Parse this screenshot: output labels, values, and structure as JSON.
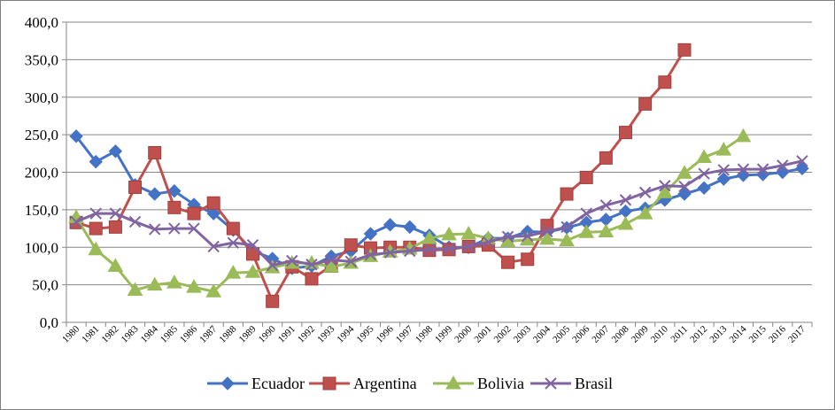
{
  "chart_data": {
    "type": "line",
    "title": "",
    "xlabel": "",
    "ylabel": "",
    "ylim": [
      0,
      400
    ],
    "yticks": [
      "0,0",
      "50,0",
      "100,0",
      "150,0",
      "200,0",
      "250,0",
      "300,0",
      "350,0",
      "400,0"
    ],
    "grid": true,
    "legend_position": "bottom",
    "categories": [
      "1980",
      "1981",
      "1982",
      "1983",
      "1984",
      "1985",
      "1986",
      "1987",
      "1988",
      "1989",
      "1990",
      "1991",
      "1992",
      "1993",
      "1994",
      "1995",
      "1996",
      "1997",
      "1998",
      "1999",
      "2000",
      "2001",
      "2002",
      "2003",
      "2004",
      "2005",
      "2006",
      "2007",
      "2008",
      "2009",
      "2010",
      "2011",
      "2012",
      "2013",
      "2014",
      "2015",
      "2016",
      "2017"
    ],
    "series": [
      {
        "name": "Ecuador",
        "color": "#4472C4",
        "marker": "diamond",
        "values": [
          248,
          214,
          228,
          183,
          171,
          175,
          157,
          145,
          123,
          95,
          85,
          72,
          75,
          88,
          95,
          118,
          130,
          127,
          116,
          100,
          100,
          112,
          112,
          121,
          120,
          126,
          133,
          137,
          148,
          152,
          163,
          171,
          179,
          191,
          196,
          197,
          200,
          205
        ]
      },
      {
        "name": "Argentina",
        "color": "#C0504D",
        "marker": "square",
        "values": [
          133,
          125,
          127,
          180,
          226,
          153,
          145,
          159,
          125,
          91,
          28,
          74,
          58,
          75,
          103,
          99,
          100,
          100,
          96,
          97,
          101,
          103,
          80,
          84,
          129,
          171,
          193,
          219,
          253,
          291,
          320,
          363,
          null,
          null,
          null,
          null,
          null,
          null
        ]
      },
      {
        "name": "Bolivia",
        "color": "#9BBB59",
        "marker": "triangle",
        "values": [
          140,
          97,
          75,
          43,
          50,
          53,
          47,
          41,
          66,
          67,
          73,
          79,
          79,
          74,
          79,
          88,
          94,
          98,
          112,
          117,
          118,
          112,
          108,
          110,
          111,
          109,
          120,
          121,
          131,
          145,
          173,
          199,
          220,
          230,
          248,
          null,
          null,
          null
        ]
      },
      {
        "name": "Brasil",
        "color": "#8064A2",
        "marker": "x",
        "values": [
          134,
          145,
          145,
          134,
          124,
          125,
          125,
          101,
          106,
          103,
          76,
          82,
          77,
          83,
          81,
          90,
          93,
          95,
          97,
          98,
          101,
          107,
          114,
          115,
          121,
          127,
          145,
          156,
          163,
          173,
          182,
          181,
          198,
          203,
          204,
          204,
          209,
          215
        ]
      }
    ]
  }
}
